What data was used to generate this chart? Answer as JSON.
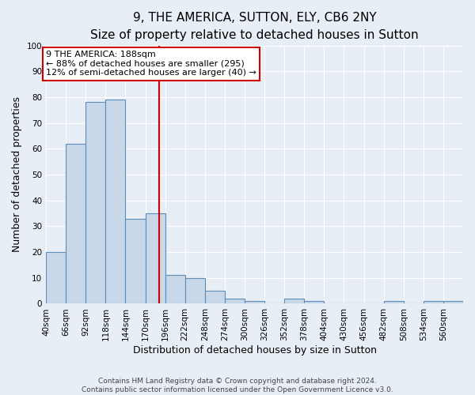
{
  "title": "9, THE AMERICA, SUTTON, ELY, CB6 2NY",
  "subtitle": "Size of property relative to detached houses in Sutton",
  "xlabel": "Distribution of detached houses by size in Sutton",
  "ylabel": "Number of detached properties",
  "bin_labels": [
    "40sqm",
    "66sqm",
    "92sqm",
    "118sqm",
    "144sqm",
    "170sqm",
    "196sqm",
    "222sqm",
    "248sqm",
    "274sqm",
    "300sqm",
    "326sqm",
    "352sqm",
    "378sqm",
    "404sqm",
    "430sqm",
    "456sqm",
    "482sqm",
    "508sqm",
    "534sqm",
    "560sqm"
  ],
  "bar_heights": [
    20,
    62,
    78,
    79,
    33,
    35,
    11,
    10,
    5,
    2,
    1,
    0,
    2,
    1,
    0,
    0,
    0,
    1,
    0,
    1,
    1
  ],
  "bin_edges": [
    40,
    66,
    92,
    118,
    144,
    170,
    196,
    222,
    248,
    274,
    300,
    326,
    352,
    378,
    404,
    430,
    456,
    482,
    508,
    534,
    560,
    586
  ],
  "bar_color": "#c8d8e8",
  "bar_edge_color": "#5b8db8",
  "vline_x": 188,
  "vline_color": "#cc0000",
  "annotation_text": "9 THE AMERICA: 188sqm\n← 88% of detached houses are smaller (295)\n12% of semi-detached houses are larger (40) →",
  "annotation_box_color": "#ffffff",
  "annotation_box_edge": "#cc0000",
  "ylim": [
    0,
    100
  ],
  "yticks": [
    0,
    10,
    20,
    30,
    40,
    50,
    60,
    70,
    80,
    90,
    100
  ],
  "footer_line1": "Contains HM Land Registry data © Crown copyright and database right 2024.",
  "footer_line2": "Contains public sector information licensed under the Open Government Licence v3.0.",
  "background_color": "#e8eef5",
  "plot_background": "#e8eef5",
  "grid_color": "#ffffff",
  "title_fontsize": 11,
  "subtitle_fontsize": 9.5,
  "axis_label_fontsize": 9,
  "tick_fontsize": 7.5,
  "annotation_fontsize": 8,
  "footer_fontsize": 6.5
}
